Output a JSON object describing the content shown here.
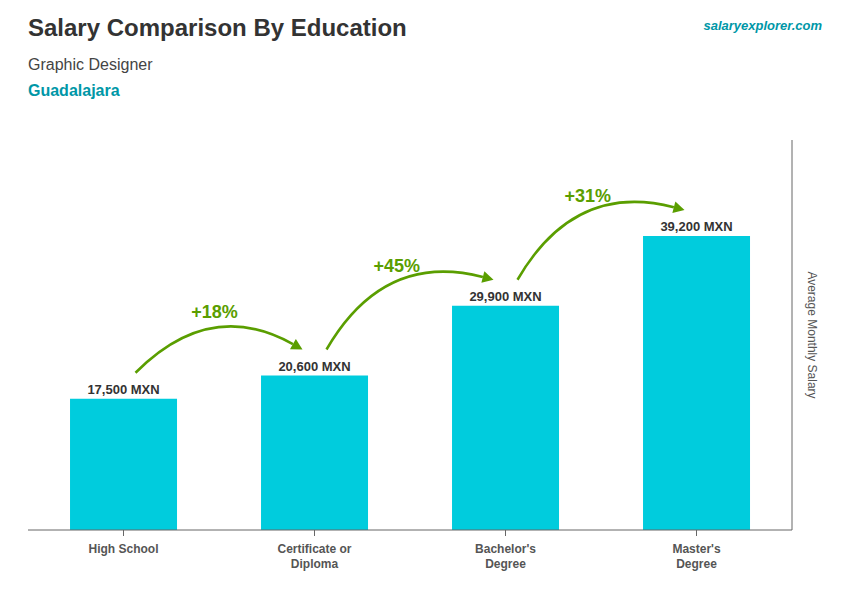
{
  "chart_data": {
    "type": "bar",
    "title": "Salary Comparison By Education",
    "subtitle": "Graphic Designer",
    "y_label": "Average Monthly Salary",
    "categories": [
      "High School",
      "Certificate or\nDiploma",
      "Bachelor's\nDegree",
      "Master's\nDegree"
    ],
    "values": [
      17500,
      20600,
      29900,
      39200
    ],
    "value_labels": [
      "17,500 MXN",
      "20,600 MXN",
      "29,900 MXN",
      "39,200 MXN"
    ],
    "data_labels": true,
    "color": "#00ccdd",
    "ylim": [
      0,
      52000
    ],
    "tick_labels": "x",
    "grid": false,
    "annotations": [
      {
        "text": "Guadalajara"
      },
      {
        "text": "salaryexplorer.com"
      },
      {
        "text": "+18%",
        "from": "High School",
        "to": "Certificate or\nDiploma"
      },
      {
        "text": "+45%",
        "from": "Certificate or\nDiploma",
        "to": "Bachelor's\nDegree"
      },
      {
        "text": "+31%",
        "from": "Bachelor's\nDegree",
        "to": "Master's\nDegree"
      }
    ]
  }
}
